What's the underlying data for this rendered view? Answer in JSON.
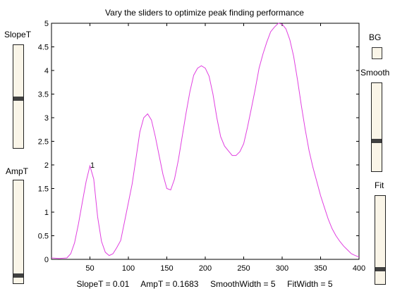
{
  "title": "Vary the sliders to optimize peak finding performance",
  "status": "SlopeT = 0.01     AmpT = 0.1683     SmoothWidth = 5     FitWidth = 5",
  "controls": {
    "slopeT": {
      "label": "SlopeT",
      "level": 0.48
    },
    "ampT": {
      "label": "AmpT",
      "level": 0.06
    },
    "bg": {
      "label": "BG"
    },
    "smooth": {
      "label": "Smooth",
      "level": 0.34
    },
    "fit": {
      "label": "Fit",
      "level": 0.15
    }
  },
  "peak_marker": "1",
  "chart_data": {
    "type": "line",
    "xlim": [
      0,
      400
    ],
    "ylim": [
      0,
      5
    ],
    "xticks": [
      50,
      100,
      150,
      200,
      250,
      300,
      350,
      400
    ],
    "yticks": [
      0,
      0.5,
      1,
      1.5,
      2,
      2.5,
      3,
      3.5,
      4,
      4.5,
      5
    ],
    "ytick_labels": [
      "0",
      "0.5",
      "1",
      "1.5",
      "2",
      "2.5",
      "3",
      "3.5",
      "4",
      "4.5",
      "5"
    ],
    "series_color": "#e040e0",
    "x": [
      0,
      10,
      20,
      25,
      30,
      35,
      40,
      45,
      50,
      55,
      60,
      65,
      70,
      75,
      80,
      85,
      90,
      95,
      100,
      105,
      110,
      115,
      120,
      125,
      130,
      135,
      140,
      145,
      150,
      155,
      160,
      165,
      170,
      175,
      180,
      185,
      190,
      195,
      200,
      205,
      210,
      215,
      220,
      225,
      230,
      235,
      240,
      245,
      250,
      255,
      260,
      265,
      270,
      275,
      280,
      285,
      290,
      295,
      300,
      305,
      310,
      315,
      320,
      325,
      330,
      335,
      340,
      345,
      350,
      355,
      360,
      365,
      370,
      375,
      380,
      385,
      390,
      395,
      400
    ],
    "y": [
      0.03,
      0.02,
      0.03,
      0.12,
      0.35,
      0.75,
      1.2,
      1.65,
      1.98,
      1.7,
      0.9,
      0.38,
      0.15,
      0.08,
      0.12,
      0.25,
      0.4,
      0.8,
      1.2,
      1.6,
      2.15,
      2.7,
      3.0,
      3.08,
      2.95,
      2.6,
      2.2,
      1.8,
      1.5,
      1.47,
      1.7,
      2.1,
      2.6,
      3.1,
      3.55,
      3.9,
      4.05,
      4.1,
      4.05,
      3.88,
      3.5,
      3.0,
      2.6,
      2.4,
      2.3,
      2.2,
      2.2,
      2.28,
      2.45,
      2.8,
      3.2,
      3.6,
      4.05,
      4.35,
      4.6,
      4.82,
      4.92,
      5.0,
      4.98,
      4.88,
      4.65,
      4.3,
      3.8,
      3.25,
      2.75,
      2.3,
      1.95,
      1.65,
      1.35,
      1.1,
      0.85,
      0.65,
      0.5,
      0.38,
      0.28,
      0.2,
      0.12,
      0.08,
      0.05
    ]
  }
}
